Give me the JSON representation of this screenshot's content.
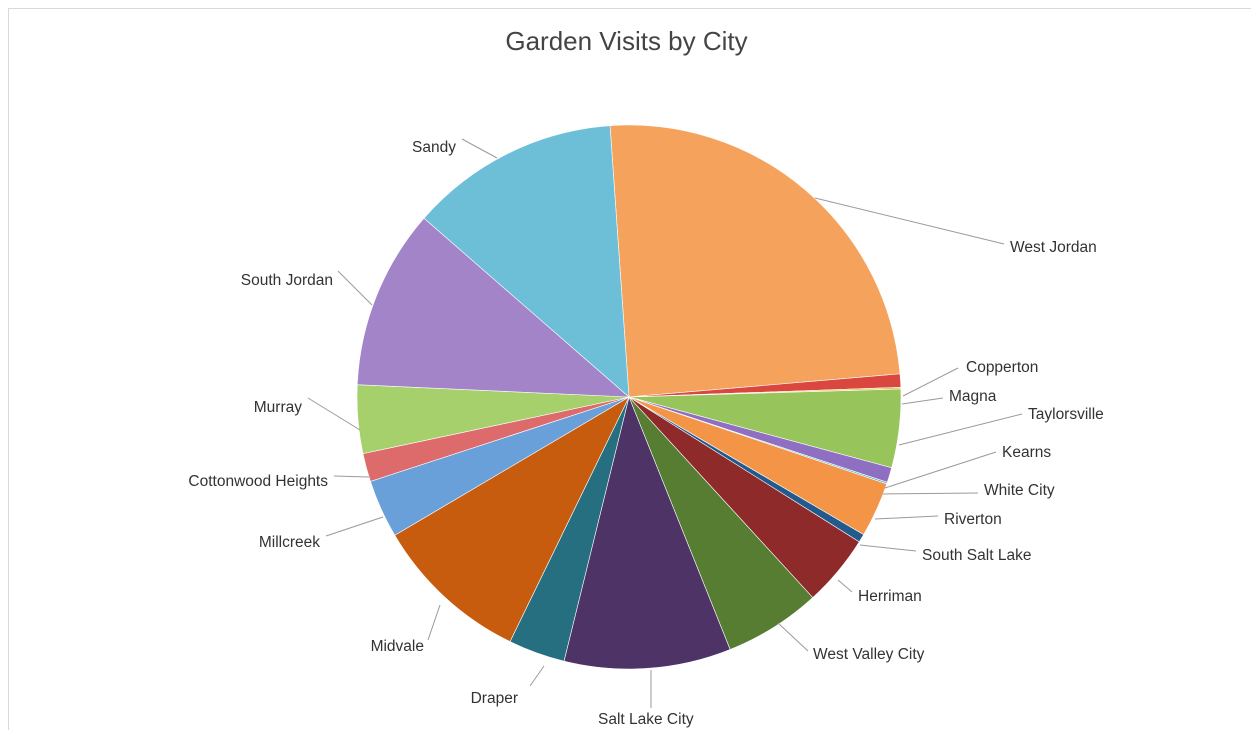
{
  "chart_data": {
    "type": "pie",
    "title": "Garden Visits by City",
    "legend": "none (labels outside slices with leader lines)",
    "slices": [
      {
        "label": "West Jordan",
        "value": 25.0,
        "color": "#f5a25d"
      },
      {
        "label": "Copperton",
        "value": 0.8,
        "color": "#d9473f"
      },
      {
        "label": "Magna",
        "value": 0.1,
        "color": "#e8c23a"
      },
      {
        "label": "Taylorsville",
        "value": 4.7,
        "color": "#98c45c"
      },
      {
        "label": "Kearns",
        "value": 0.9,
        "color": "#8f6fc2"
      },
      {
        "label": "White City",
        "value": 0.1,
        "color": "#5bbdd1"
      },
      {
        "label": "Riverton",
        "value": 3.3,
        "color": "#f39447"
      },
      {
        "label": "South Salt Lake",
        "value": 0.5,
        "color": "#235a8e"
      },
      {
        "label": "Herriman",
        "value": 4.3,
        "color": "#8e2a2a"
      },
      {
        "label": "West Valley City",
        "value": 5.8,
        "color": "#567d31"
      },
      {
        "label": "Salt Lake City",
        "value": 10.0,
        "color": "#4d3366"
      },
      {
        "label": "Draper",
        "value": 3.4,
        "color": "#256f80"
      },
      {
        "label": "Midvale",
        "value": 9.4,
        "color": "#c85c0e"
      },
      {
        "label": "Millcreek",
        "value": 3.5,
        "color": "#6aa0da"
      },
      {
        "label": "Cottonwood Heights",
        "value": 1.7,
        "color": "#dd6b6b"
      },
      {
        "label": "Murray",
        "value": 4.1,
        "color": "#a6d06b"
      },
      {
        "label": "South Jordan",
        "value": 10.8,
        "color": "#a384c8"
      },
      {
        "label": "Sandy",
        "value": 12.6,
        "color": "#6cbfd6"
      }
    ]
  }
}
